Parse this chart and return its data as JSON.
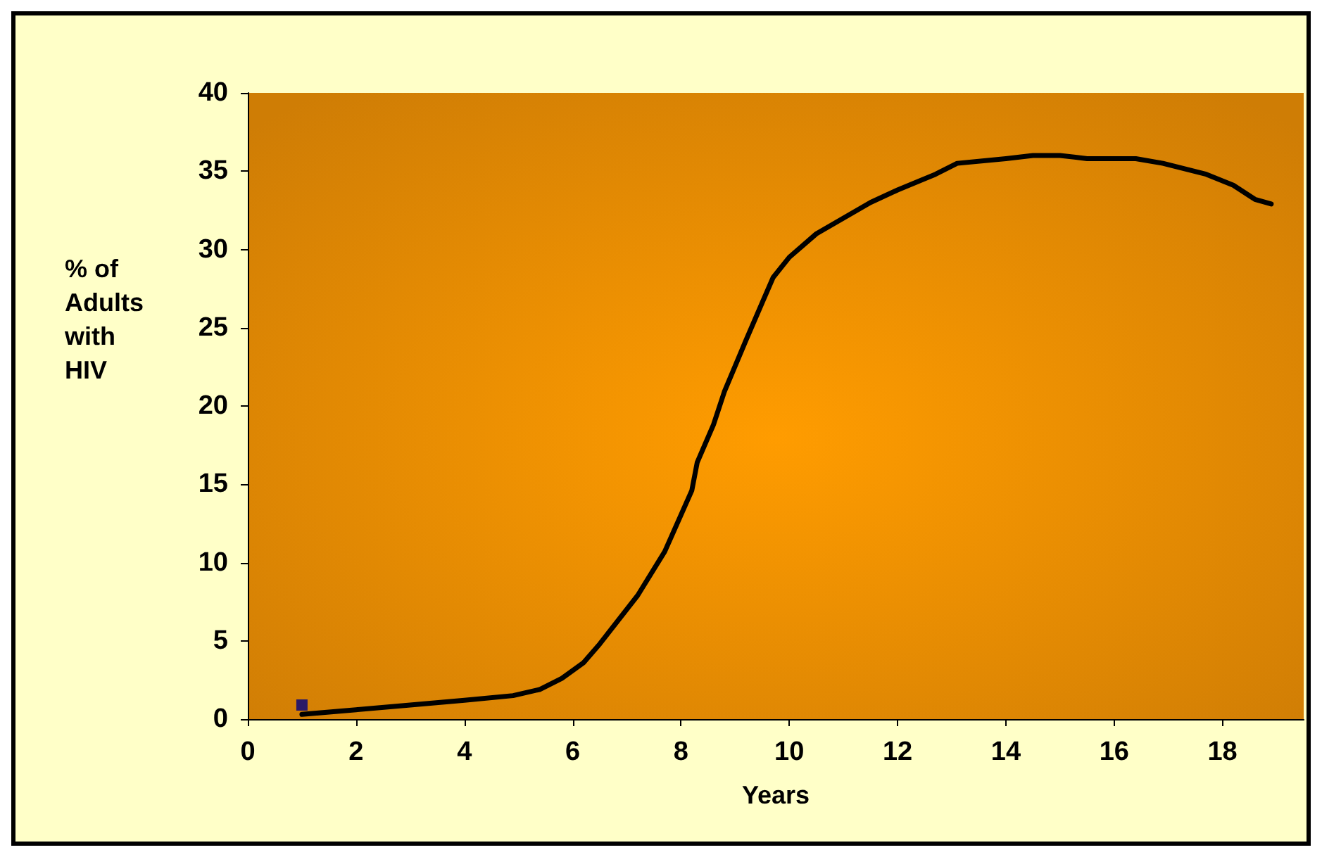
{
  "chart_data": {
    "type": "line",
    "xlabel": "Years",
    "ylabel": "% of Adults with HIV",
    "xlim": [
      0,
      19.5
    ],
    "ylim": [
      0,
      40
    ],
    "xticks": [
      0,
      2,
      4,
      6,
      8,
      10,
      12,
      14,
      16,
      18
    ],
    "yticks": [
      0,
      5,
      10,
      15,
      20,
      25,
      30,
      35,
      40
    ],
    "grid": false,
    "series": [
      {
        "color": "#000000",
        "marker": "none",
        "line_style": "solid",
        "x": [
          1,
          2,
          3,
          4,
          4.9,
          5.4,
          5.8,
          6.2,
          6.5,
          7.2,
          7.7,
          8.2,
          8.3,
          8.6,
          8.8,
          9.2,
          9.5,
          9.7,
          10,
          10.5,
          11,
          11.5,
          12,
          12.7,
          13.1,
          14,
          14.5,
          15,
          15.5,
          16.4,
          16.9,
          17.7,
          18.2,
          18.6,
          18.9
        ],
        "values": [
          0.3,
          0.6,
          0.9,
          1.2,
          1.5,
          1.9,
          2.6,
          3.6,
          4.8,
          7.9,
          10.7,
          14.6,
          16.4,
          18.8,
          20.9,
          24.2,
          26.6,
          28.2,
          29.5,
          31,
          32,
          33,
          33.8,
          34.8,
          35.5,
          35.8,
          36,
          36,
          35.8,
          35.8,
          35.5,
          34.8,
          34.1,
          33.2,
          32.9
        ]
      },
      {
        "type": "scatter",
        "color": "#000080",
        "marker": "square",
        "x": [
          1
        ],
        "values": [
          0.9
        ]
      }
    ]
  }
}
